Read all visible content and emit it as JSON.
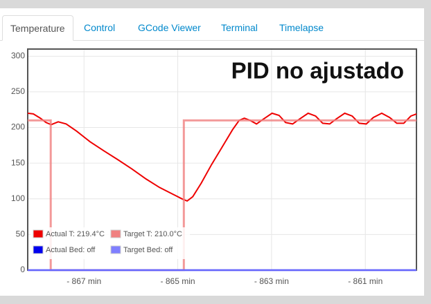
{
  "tabs": [
    "Temperature",
    "Control",
    "GCode Viewer",
    "Terminal",
    "Timelapse"
  ],
  "active_tab": 0,
  "chart_data": {
    "type": "line",
    "annotation": "PID no ajustado",
    "xlim": [
      -868.2,
      -859.91
    ],
    "xticks": [
      {
        "value": -867,
        "label": "- 867 min"
      },
      {
        "value": -865,
        "label": "- 865 min"
      },
      {
        "value": -863,
        "label": "- 863 min"
      },
      {
        "value": -861,
        "label": "- 861 min"
      }
    ],
    "ylim": [
      0,
      310
    ],
    "yticks": [
      0,
      50,
      100,
      150,
      200,
      250,
      300
    ],
    "grid": true,
    "legend": "lower left",
    "series": [
      {
        "name": "Actual T: 219.4°C",
        "color": "#ee0000",
        "x": [
          -868.2,
          -868.08,
          -867.93,
          -867.81,
          -867.7,
          -867.55,
          -867.38,
          -867.16,
          -866.87,
          -866.57,
          -866.28,
          -865.98,
          -865.68,
          -865.39,
          -865.09,
          -864.91,
          -864.8,
          -864.68,
          -864.5,
          -864.28,
          -864.06,
          -863.83,
          -863.69,
          -863.58,
          -863.46,
          -863.32,
          -863.17,
          -862.99,
          -862.84,
          -862.7,
          -862.55,
          -862.4,
          -862.22,
          -862.06,
          -861.91,
          -861.76,
          -861.62,
          -861.44,
          -861.28,
          -861.13,
          -860.98,
          -860.83,
          -860.65,
          -860.48,
          -860.33,
          -860.18,
          -860.03,
          -859.91
        ],
        "values": [
          220,
          219,
          213,
          207,
          204,
          208,
          205,
          195,
          180,
          167,
          155,
          142,
          128,
          116,
          106,
          100,
          97,
          103,
          122,
          148,
          172,
          197,
          210,
          213,
          210,
          205,
          212,
          220,
          217,
          207,
          205,
          212,
          220,
          216,
          206,
          205,
          212,
          220,
          216,
          206,
          205,
          214,
          220,
          214,
          206,
          206,
          216,
          219
        ]
      },
      {
        "name": "Target T: 210.0°C",
        "color": "#f08080",
        "x": [
          -868.2,
          -867.71,
          -867.71,
          -864.87,
          -864.87,
          -859.91
        ],
        "values": [
          210,
          210,
          0,
          0,
          210,
          210
        ]
      },
      {
        "name": "Actual Bed: off",
        "color": "#0000ee",
        "x": [
          -868.2,
          -859.91
        ],
        "values": [
          0,
          0
        ]
      },
      {
        "name": "Target Bed: off",
        "color": "#7f7fff",
        "x": [
          -868.2,
          -859.91
        ],
        "values": [
          0,
          0
        ]
      }
    ]
  }
}
